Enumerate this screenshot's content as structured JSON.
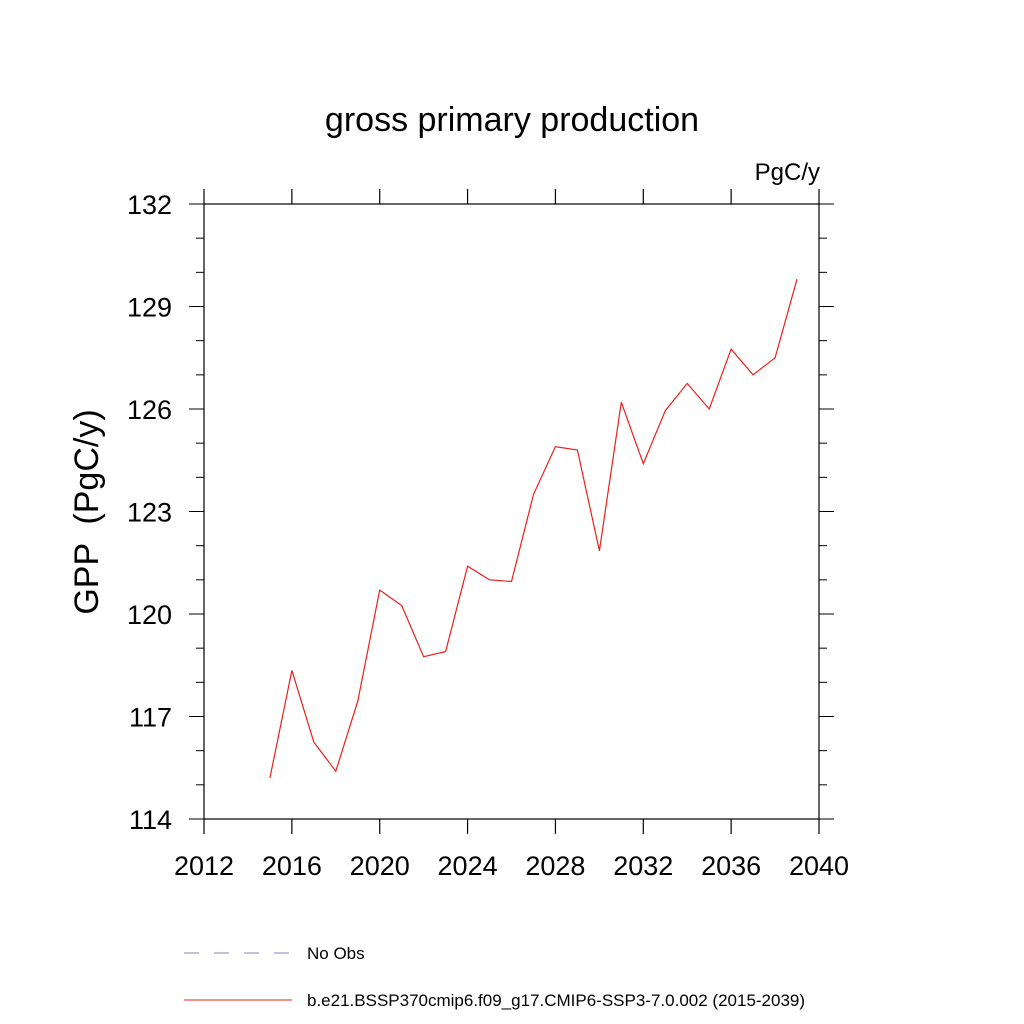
{
  "chart_data": {
    "type": "line",
    "title": "gross primary production",
    "units": "PgC/y",
    "xlabel": "",
    "ylabel": "GPP  (PgC/y)",
    "xlim": [
      2012,
      2040
    ],
    "ylim": [
      114,
      132
    ],
    "xticks": [
      2012,
      2016,
      2020,
      2024,
      2028,
      2032,
      2036,
      2040
    ],
    "yticks": [
      114,
      117,
      120,
      123,
      126,
      129,
      132
    ],
    "grid": false,
    "series": [
      {
        "name": "b.e21.BSSP370cmip6.f09_g17.CMIP6-SSP3-7.0.002 (2015-2039)",
        "color": "#e8201c",
        "style": "solid",
        "x": [
          2015,
          2016,
          2017,
          2018,
          2019,
          2020,
          2021,
          2022,
          2023,
          2024,
          2025,
          2026,
          2027,
          2028,
          2029,
          2030,
          2031,
          2032,
          2033,
          2034,
          2035,
          2036,
          2037,
          2038,
          2039
        ],
        "values": [
          115.2,
          118.35,
          116.25,
          115.4,
          117.45,
          120.7,
          120.25,
          118.75,
          118.9,
          121.4,
          121.0,
          120.95,
          123.5,
          124.9,
          124.8,
          121.85,
          126.2,
          124.4,
          125.95,
          126.75,
          126.0,
          127.75,
          127.0,
          127.5,
          129.8
        ]
      }
    ],
    "legend": [
      {
        "label": "No Obs",
        "color": "#8080c0",
        "style": "dashed"
      },
      {
        "label": "b.e21.BSSP370cmip6.f09_g17.CMIP6-SSP3-7.0.002 (2015-2039)",
        "color": "#e8201c",
        "style": "solid"
      }
    ],
    "legend_position": "bottom"
  }
}
